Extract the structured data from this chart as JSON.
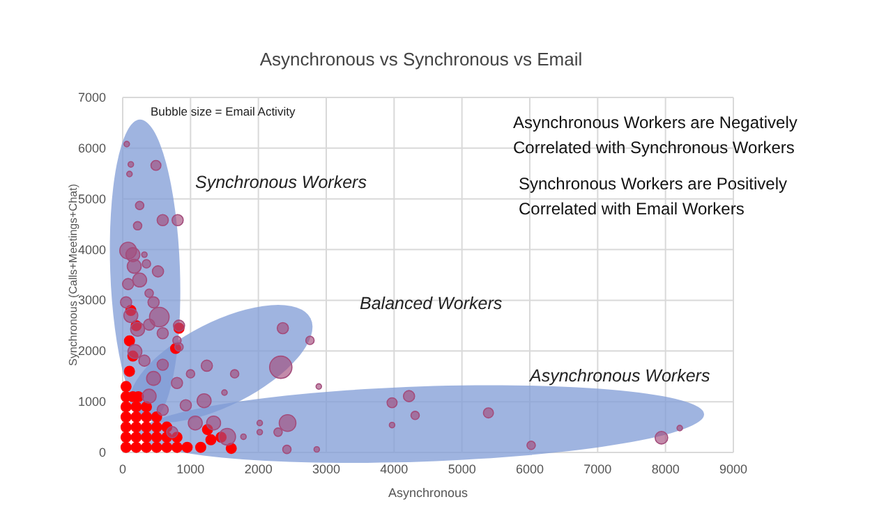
{
  "chart_data": {
    "type": "bubble",
    "title": "Asynchronous vs Synchronous vs Email",
    "xlabel": "Asynchronous",
    "ylabel": "Synchronous (Calls+Meetings+Chat)",
    "xlim": [
      0,
      9000
    ],
    "ylim": [
      0,
      7000
    ],
    "xticks": [
      0,
      1000,
      2000,
      3000,
      4000,
      5000,
      6000,
      7000,
      8000,
      9000
    ],
    "yticks": [
      0,
      1000,
      2000,
      3000,
      4000,
      5000,
      6000,
      7000
    ],
    "grid": true,
    "annotations": [
      "Bubble size = Email Activity",
      "Synchronous Workers",
      "Balanced Workers",
      "Asynchronous Workers",
      "Asynchronous Workers are Negatively\nCorrelated with Synchronous Workers",
      "Synchronous Workers are Positively\nCorrelated with Email Workers"
    ],
    "series": [
      {
        "color": "#ff0000",
        "x": [
          50,
          200,
          350,
          500,
          650,
          800,
          950,
          50,
          200,
          350,
          500,
          650,
          800,
          50,
          200,
          350,
          500,
          650,
          50,
          200,
          350,
          500,
          50,
          200,
          350,
          50,
          150,
          230,
          50,
          1150,
          1300,
          1600,
          1450,
          1250,
          100,
          150,
          100,
          200,
          120,
          780,
          830
        ],
        "values": [
          100,
          100,
          100,
          100,
          100,
          100,
          100,
          300,
          300,
          300,
          300,
          300,
          300,
          500,
          500,
          500,
          500,
          500,
          700,
          700,
          700,
          700,
          900,
          900,
          900,
          1100,
          1100,
          1100,
          1300,
          100,
          250,
          80,
          300,
          450,
          1600,
          1900,
          2200,
          2500,
          2800,
          2050,
          2450
        ],
        "sizes": [
          0.2,
          0.2,
          0.2,
          0.2,
          0.2,
          0.2,
          0.2,
          0.2,
          0.2,
          0.2,
          0.2,
          0.2,
          0.2,
          0.2,
          0.2,
          0.2,
          0.2,
          0.2,
          0.2,
          0.2,
          0.2,
          0.2,
          0.2,
          0.2,
          0.2,
          0.2,
          0.2,
          0.2,
          0.2,
          0.2,
          0.2,
          0.2,
          0.2,
          0.2,
          0.2,
          0.2,
          0.2,
          0.2,
          0.2,
          0.2,
          0.2
        ]
      },
      {
        "color": "#a34d7c",
        "x": [
          60,
          120,
          490,
          100,
          250,
          220,
          590,
          810,
          80,
          150,
          320,
          350,
          170,
          520,
          250,
          80,
          390,
          455,
          540,
          830,
          590,
          800,
          830,
          590,
          1240,
          1650,
          1000,
          2330,
          2360,
          2760,
          2890,
          1500,
          1200,
          800,
          2430,
          2290,
          2020,
          1780,
          2020,
          2420,
          2860,
          1540,
          1340,
          1070,
          930,
          590,
          730,
          390,
          180,
          120,
          220,
          390,
          50,
          320,
          455,
          3970,
          4220,
          4310,
          3970,
          5390,
          6020,
          7940,
          8210
        ],
        "values": [
          6080,
          5680,
          5660,
          5490,
          4870,
          4470,
          4580,
          4580,
          3980,
          3900,
          3900,
          3720,
          3670,
          3570,
          3400,
          3320,
          3140,
          2960,
          2670,
          2500,
          2350,
          2210,
          2080,
          1730,
          1710,
          1550,
          1550,
          1680,
          2450,
          2210,
          1300,
          1180,
          1020,
          1370,
          580,
          400,
          580,
          310,
          400,
          60,
          60,
          310,
          580,
          580,
          930,
          840,
          400,
          1110,
          1990,
          2700,
          2430,
          2520,
          2960,
          1810,
          1460,
          980,
          1110,
          730,
          540,
          780,
          140,
          290,
          480
        ],
        "sizes": [
          0.06,
          0.06,
          0.2,
          0.06,
          0.14,
          0.14,
          0.25,
          0.25,
          0.56,
          0.39,
          0.06,
          0.14,
          0.39,
          0.25,
          0.39,
          0.25,
          0.14,
          0.25,
          0.77,
          0.25,
          0.25,
          0.14,
          0.14,
          0.25,
          0.25,
          0.14,
          0.14,
          1,
          0.25,
          0.14,
          0.06,
          0.06,
          0.39,
          0.25,
          0.56,
          0.14,
          0.06,
          0.06,
          0.06,
          0.14,
          0.06,
          0.56,
          0.39,
          0.39,
          0.25,
          0.25,
          0.25,
          0.39,
          0.39,
          0.39,
          0.39,
          0.25,
          0.25,
          0.25,
          0.39,
          0.2,
          0.25,
          0.14,
          0.06,
          0.2,
          0.14,
          0.32,
          0.06
        ]
      }
    ]
  }
}
